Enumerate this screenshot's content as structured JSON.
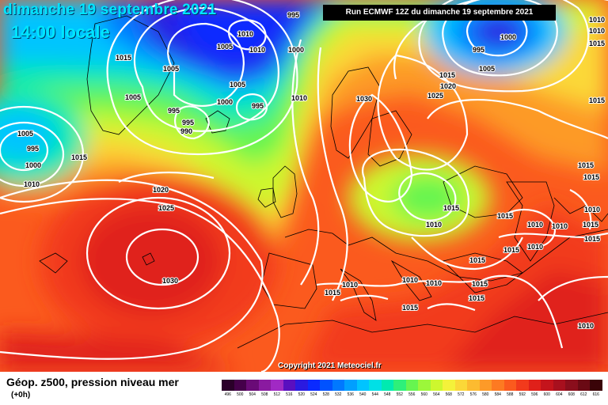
{
  "header": {
    "date_title": "dimanche 19 septembre 2021",
    "time_title": "14:00 locale",
    "run_info": "Run ECMWF 12Z du dimanche 19 septembre 2021"
  },
  "copyright": "Copyright 2021 Meteociel.fr",
  "footer": {
    "title": "Géop. z500, pression niveau mer",
    "forecast_hour": "(+0h)"
  },
  "legend": {
    "labels": [
      "496",
      "500",
      "504",
      "508",
      "512",
      "516",
      "520",
      "524",
      "528",
      "532",
      "536",
      "540",
      "544",
      "548",
      "552",
      "556",
      "560",
      "564",
      "568",
      "572",
      "576",
      "580",
      "584",
      "588",
      "592",
      "596",
      "600",
      "604",
      "608",
      "612",
      "616"
    ],
    "colors": [
      "#2a0029",
      "#45004a",
      "#6a0b77",
      "#8a1aa0",
      "#a129c4",
      "#5a0fbf",
      "#2a1ae0",
      "#0a2aff",
      "#0052ff",
      "#0078ff",
      "#009fff",
      "#00c4ff",
      "#00e0e6",
      "#00eab0",
      "#2ef07a",
      "#66f550",
      "#9cf73a",
      "#cdf72e",
      "#f4f23a",
      "#fbd838",
      "#fcbb30",
      "#fd9a28",
      "#fd7a22",
      "#fb5a1e",
      "#f23a1c",
      "#e0201a",
      "#c4141c",
      "#a8101e",
      "#8a0e1c",
      "#6a0a14",
      "#3a0408"
    ]
  },
  "isobar_labels": [
    {
      "text": "995"
    },
    {
      "text": "1010"
    },
    {
      "text": "1010"
    },
    {
      "text": "1005"
    },
    {
      "text": "1000"
    },
    {
      "text": "1005"
    },
    {
      "text": "1015"
    },
    {
      "text": "1005"
    },
    {
      "text": "1005"
    },
    {
      "text": "1000"
    },
    {
      "text": "995"
    },
    {
      "text": "995"
    },
    {
      "text": "995"
    },
    {
      "text": "990"
    },
    {
      "text": "1010"
    },
    {
      "text": "1005"
    },
    {
      "text": "995"
    },
    {
      "text": "1000"
    },
    {
      "text": "1010"
    },
    {
      "text": "1015"
    },
    {
      "text": "1020"
    },
    {
      "text": "1025"
    },
    {
      "text": "1030"
    },
    {
      "text": "995"
    },
    {
      "text": "1000"
    },
    {
      "text": "1005"
    },
    {
      "text": "1015"
    },
    {
      "text": "1010"
    },
    {
      "text": "1015"
    },
    {
      "text": "1020"
    },
    {
      "text": "1025"
    },
    {
      "text": "1030"
    },
    {
      "text": "1010"
    },
    {
      "text": "1015"
    },
    {
      "text": "1015"
    },
    {
      "text": "1015"
    },
    {
      "text": "1010"
    },
    {
      "text": "1010"
    },
    {
      "text": "1015"
    },
    {
      "text": "1010"
    },
    {
      "text": "1015"
    },
    {
      "text": "1015"
    },
    {
      "text": "1015"
    },
    {
      "text": "1015"
    },
    {
      "text": "1010"
    },
    {
      "text": "1010"
    },
    {
      "text": "1015"
    },
    {
      "text": "1010"
    },
    {
      "text": "1010"
    },
    {
      "text": "1015"
    },
    {
      "text": "1015"
    },
    {
      "text": "1015"
    },
    {
      "text": "1010"
    },
    {
      "text": "1015"
    },
    {
      "text": "1010"
    }
  ]
}
